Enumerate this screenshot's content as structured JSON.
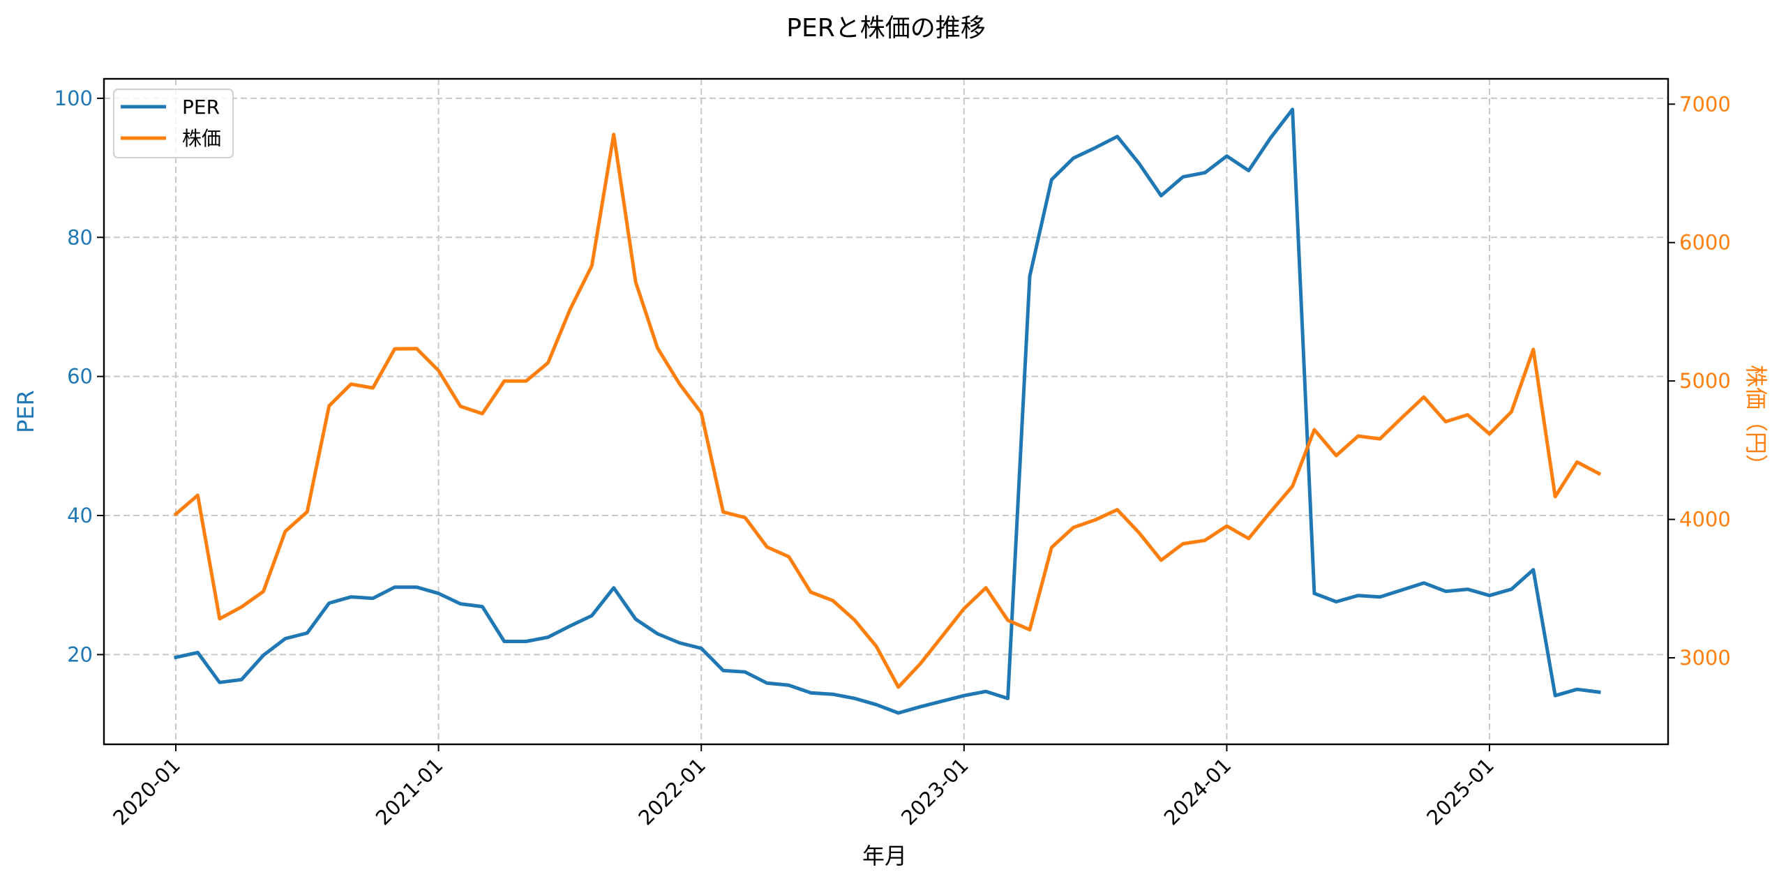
{
  "chart_data": {
    "type": "line",
    "title": "PERと株価の推移",
    "xlabel": "年月",
    "ylabel": "PER",
    "y2label": "株価（円）",
    "ylim": [
      7.1,
      102.8
    ],
    "y2lim": [
      2375,
      7183
    ],
    "yticks": [
      20,
      40,
      60,
      80,
      100
    ],
    "y2ticks": [
      3000,
      4000,
      5000,
      6000,
      7000
    ],
    "xticks": [
      "2020-01",
      "2021-01",
      "2022-01",
      "2023-01",
      "2024-01",
      "2025-01"
    ],
    "grid": true,
    "legend_position": "upper left",
    "x": [
      "2020-01",
      "2020-02",
      "2020-03",
      "2020-04",
      "2020-05",
      "2020-06",
      "2020-07",
      "2020-08",
      "2020-09",
      "2020-10",
      "2020-11",
      "2020-12",
      "2021-01",
      "2021-02",
      "2021-03",
      "2021-04",
      "2021-05",
      "2021-06",
      "2021-07",
      "2021-08",
      "2021-09",
      "2021-10",
      "2021-11",
      "2021-12",
      "2022-01",
      "2022-02",
      "2022-03",
      "2022-04",
      "2022-05",
      "2022-06",
      "2022-07",
      "2022-08",
      "2022-09",
      "2022-10",
      "2022-11",
      "2022-12",
      "2023-01",
      "2023-02",
      "2023-03",
      "2023-04",
      "2023-05",
      "2023-06",
      "2023-07",
      "2023-08",
      "2023-09",
      "2023-10",
      "2023-11",
      "2023-12",
      "2024-01",
      "2024-02",
      "2024-03",
      "2024-04",
      "2024-05",
      "2024-06",
      "2024-07",
      "2024-08",
      "2024-09",
      "2024-10",
      "2024-11",
      "2024-12",
      "2025-01",
      "2025-02",
      "2025-03",
      "2025-04",
      "2025-05",
      "2025-06"
    ],
    "series": [
      {
        "name": "PER",
        "axis": "left",
        "color": "#1f77b4",
        "values": [
          19.6,
          20.3,
          16.0,
          16.4,
          19.9,
          22.3,
          23.1,
          27.4,
          28.3,
          28.1,
          29.7,
          29.7,
          28.8,
          27.3,
          26.9,
          21.9,
          21.9,
          22.5,
          24.1,
          25.6,
          29.6,
          25.1,
          23.0,
          21.7,
          20.9,
          17.7,
          17.5,
          15.9,
          15.6,
          14.5,
          14.3,
          13.7,
          12.8,
          11.6,
          12.5,
          13.3,
          14.1,
          14.7,
          13.7,
          74.4,
          88.3,
          91.4,
          92.9,
          94.5,
          90.6,
          86.0,
          88.7,
          89.3,
          91.7,
          89.6,
          94.3,
          98.4,
          28.8,
          27.6,
          28.5,
          28.3,
          29.3,
          30.3,
          29.1,
          29.4,
          28.5,
          29.4,
          32.2,
          14.1,
          15.0,
          14.6
        ]
      },
      {
        "name": "株価",
        "axis": "right",
        "color": "#ff7f0e",
        "values": [
          4038,
          4174,
          3282,
          3367,
          3479,
          3913,
          4055,
          4820,
          4977,
          4950,
          5232,
          5234,
          5075,
          4817,
          4764,
          4999,
          4999,
          5131,
          5515,
          5832,
          6781,
          5716,
          5239,
          4980,
          4770,
          4054,
          4013,
          3801,
          3730,
          3474,
          3414,
          3273,
          3081,
          2788,
          2956,
          3155,
          3355,
          3506,
          3271,
          3203,
          3797,
          3942,
          3997,
          4070,
          3902,
          3705,
          3824,
          3848,
          3952,
          3862,
          4055,
          4239,
          4648,
          4461,
          4602,
          4582,
          4735,
          4884,
          4706,
          4756,
          4617,
          4777,
          5228,
          4164,
          4414,
          4331
        ]
      }
    ]
  },
  "colors": {
    "per": "#1f77b4",
    "price": "#ff7f0e",
    "grid": "#c8c8c8",
    "axis": "#000000"
  },
  "legend": {
    "items": [
      {
        "label": "PER"
      },
      {
        "label": "株価"
      }
    ]
  }
}
